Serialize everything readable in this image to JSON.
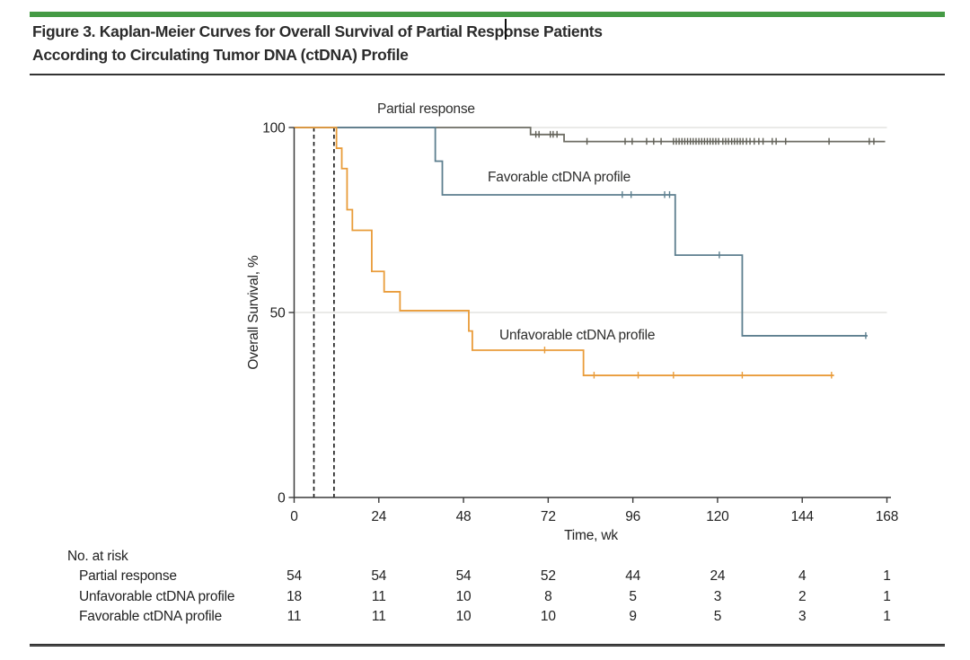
{
  "header": {
    "title_line1": "Figure 3. Kaplan-Meier Curves for Overall Survival of Partial Response Patients",
    "title_line2": "According to Circulating Tumor DNA (ctDNA) Profile",
    "accent_color": "#459b45"
  },
  "chart_data": {
    "type": "line",
    "subtype": "kaplan-meier-step",
    "title": "",
    "xlabel": "Time, wk",
    "ylabel": "Overall Survival, %",
    "xlim": [
      0,
      168
    ],
    "ylim": [
      0,
      100
    ],
    "xticks": [
      0,
      24,
      48,
      72,
      96,
      120,
      144,
      168
    ],
    "yticks": [
      100,
      50,
      0
    ],
    "gridlines_y": [
      100,
      50
    ],
    "grid": "horizontal-light",
    "legend_position": "labels-inline",
    "dashed_vlines_wk": [
      5.6,
      11.3
    ],
    "colors": {
      "grid": "#dededa",
      "axis": "#3a3a3a",
      "dashed": "#141414",
      "tick_text": "#222222"
    },
    "series": [
      {
        "name": "Partial response",
        "color": "#6e6d64",
        "censor_color": "#5f5e55",
        "start_pct": 100,
        "steps_wk_pct": [
          [
            67,
            98.1
          ],
          [
            76.5,
            96.2
          ]
        ],
        "end_wk": 167.5,
        "censors_wk": [
          68.5,
          69.4,
          72.6,
          73.4,
          74.5,
          83,
          93.8,
          95.8,
          99.9,
          101.9,
          104,
          107.5,
          108.3,
          109.1,
          109.9,
          110.7,
          111.5,
          112.3,
          113.1,
          113.9,
          114.7,
          115.5,
          116.3,
          117.1,
          117.9,
          118.7,
          119.5,
          120.3,
          121.5,
          122.3,
          123.1,
          124,
          124.8,
          125.6,
          126.4,
          127.2,
          128.2,
          129.2,
          130.4,
          131.7,
          132.9,
          135.5,
          136.6,
          139.3,
          151.6,
          163,
          164.3
        ]
      },
      {
        "name": "Favorable ctDNA profile",
        "color": "#5d7f8f",
        "censor_color": "#5d7f8f",
        "start_pct": 100,
        "steps_wk_pct": [
          [
            40,
            90.9
          ],
          [
            42,
            81.8
          ],
          [
            108,
            65.5
          ],
          [
            127,
            43.7
          ]
        ],
        "end_wk": 162.5,
        "censors_wk": [
          93,
          95.5,
          105,
          106.4,
          120.5,
          162
        ]
      },
      {
        "name": "Unfavorable ctDNA profile",
        "color": "#e99c3a",
        "censor_color": "#e99c3a",
        "start_pct": 100,
        "steps_wk_pct": [
          [
            12,
            94.4
          ],
          [
            13.5,
            88.9
          ],
          [
            15,
            77.8
          ],
          [
            16.5,
            72.2
          ],
          [
            22,
            61.1
          ],
          [
            25.5,
            55.6
          ],
          [
            30,
            50.5
          ],
          [
            49.5,
            45
          ],
          [
            50.5,
            39.8
          ],
          [
            82,
            33
          ]
        ],
        "end_wk": 153,
        "censors_wk": [
          71,
          85,
          97.5,
          107.5,
          127,
          152.3
        ]
      }
    ]
  },
  "risk_table": {
    "header": "No. at risk",
    "time_points": [
      0,
      24,
      48,
      72,
      96,
      120,
      144,
      168
    ],
    "rows": [
      {
        "label": "Partial response",
        "values": [
          "54",
          "54",
          "54",
          "52",
          "44",
          "24",
          "4",
          "1"
        ]
      },
      {
        "label": "Unfavorable ctDNA profile",
        "values": [
          "18",
          "11",
          "10",
          "8",
          "5",
          "3",
          "2",
          "1"
        ]
      },
      {
        "label": "Favorable ctDNA profile",
        "values": [
          "11",
          "11",
          "10",
          "10",
          "9",
          "5",
          "3",
          "1"
        ]
      }
    ]
  }
}
